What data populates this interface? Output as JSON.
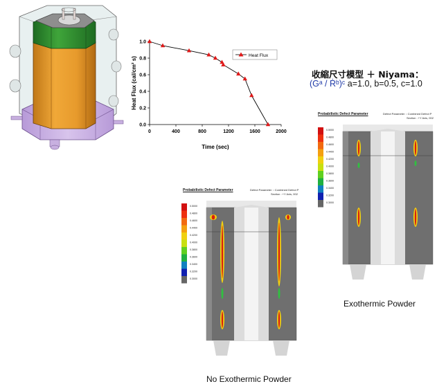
{
  "model": {
    "description_icon": "casting-mold-3d-model"
  },
  "chart_data": {
    "type": "line",
    "x": [
      0,
      200,
      600,
      900,
      1000,
      1100,
      1120,
      1350,
      1450,
      1550,
      1800
    ],
    "series": [
      {
        "name": "Heat Flux",
        "values": [
          1.0,
          0.95,
          0.89,
          0.84,
          0.8,
          0.75,
          0.72,
          0.61,
          0.55,
          0.35,
          0.0
        ]
      }
    ],
    "xlabel": "Time (sec)",
    "ylabel": "Heat Flux (cal/cm² s)",
    "xlim": [
      0,
      2000
    ],
    "ylim": [
      0,
      1.0
    ],
    "xticks": [
      "0",
      "400",
      "800",
      "1200",
      "1600",
      "2000"
    ],
    "yticks": [
      "0.0",
      "0.2",
      "0.4",
      "0.6",
      "0.8",
      "1.0"
    ],
    "legend": "top-right",
    "color": "#e01818",
    "grid": false
  },
  "formula": {
    "line1": "收縮尺寸模型 ＋ Niyama：",
    "expr": "(Gᵃ / Ṙᵇ)ᶜ",
    "params": "a=1.0, b=0.5, c=1.0"
  },
  "sim_left": {
    "title": "Probabilistic Defect Parameter",
    "header_right1": "Defect Parameter :: Combined Defect P",
    "header_right2": "Section : +Y Axis, 002",
    "caption": "No Exothermic Powder"
  },
  "sim_right": {
    "title": "Probabilistic Defect Parameter",
    "header_right1": "Defect Parameter :: Combined Defect P",
    "header_right2": "Section : +Y Axis, 002",
    "caption": "Exothermic Powder"
  },
  "colorbar": {
    "labels": [
      "0.5000",
      "0.4800",
      "0.4600",
      "0.4400",
      "0.4200",
      "0.4000",
      "0.3800",
      "0.3600",
      "0.3400",
      "0.3200",
      "0.3000"
    ],
    "colors": [
      "#d21010",
      "#ee3010",
      "#f26a10",
      "#f4a010",
      "#f0d010",
      "#c8e010",
      "#60d020",
      "#20b040",
      "#1080c0",
      "#1020b0",
      "#666666"
    ]
  }
}
